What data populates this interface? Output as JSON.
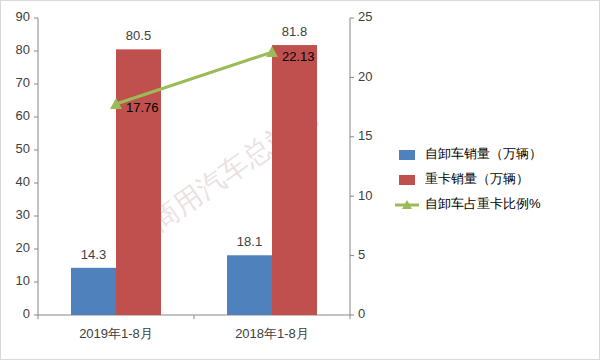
{
  "chart_data": {
    "type": "bar",
    "categories": [
      "2019年1-8月",
      "2018年1-8月"
    ],
    "series": [
      {
        "name": "自卸车销量（万辆）",
        "color": "#4f81bd",
        "values": [
          14.3,
          18.1
        ]
      },
      {
        "name": "重卡销量（万辆）",
        "color": "#c0504d",
        "values": [
          80.5,
          81.8
        ]
      },
      {
        "name": "自卸车占重卡比例%",
        "color": "#9bbb59",
        "type": "line",
        "marker": "triangle",
        "axis": "y2",
        "values": [
          17.76,
          22.13
        ]
      }
    ],
    "ylim": [
      0,
      90
    ],
    "yticks": [
      0,
      10,
      20,
      30,
      40,
      50,
      60,
      70,
      80,
      90
    ],
    "y2lim": [
      0,
      25
    ],
    "y2ticks": [
      0,
      5,
      10,
      15,
      20,
      25
    ],
    "grid": false,
    "legend": "right",
    "data_labels": true,
    "annotations": [
      {
        "text": "商用汽车总站网"
      }
    ]
  }
}
